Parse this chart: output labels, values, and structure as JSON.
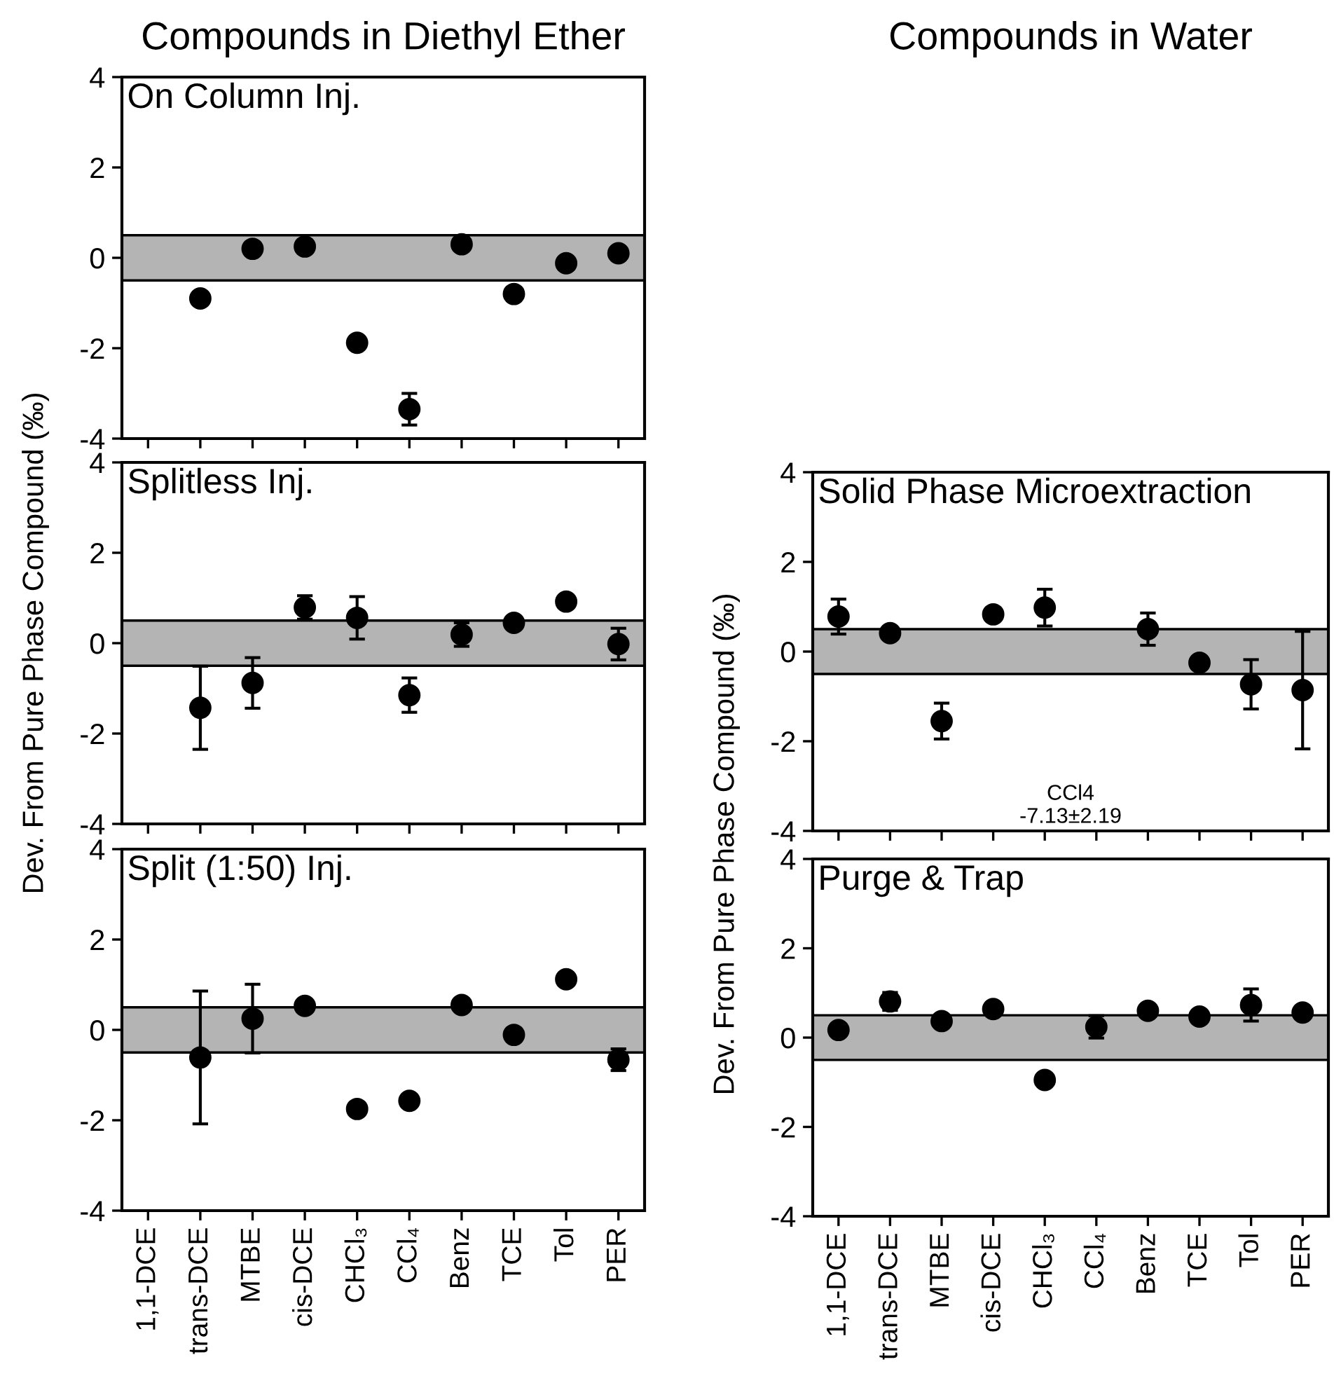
{
  "chart_data": [
    {
      "type": "scatter",
      "title": "Compounds in Diethyl Ether",
      "subtitle": "On Column Inj.",
      "categories": [
        null,
        null,
        null,
        null,
        null,
        null,
        null,
        null,
        null,
        null
      ],
      "series": [
        {
          "color": "#000000",
          "values": [
            null,
            -0.9,
            0.2,
            0.25,
            -1.88,
            -3.35,
            0.3,
            -0.8,
            -0.12,
            0.1
          ],
          "errors": [
            null,
            null,
            null,
            null,
            null,
            0.35,
            null,
            null,
            null,
            null
          ]
        }
      ],
      "ylim": [
        -4,
        4
      ],
      "yticks": [
        -4,
        -2,
        0,
        2,
        4
      ],
      "bands": [
        {
          "axis": "y",
          "from": -0.5,
          "to": 0.5,
          "color": "#b4b4b4"
        }
      ],
      "marker": "circle",
      "tick_labels": "y",
      "grid": false,
      "legend": false
    },
    {
      "type": "scatter",
      "subtitle": "Splitless Inj.",
      "ylabel": "Dev. From Pure Phase Compound (‰)",
      "categories": [
        null,
        null,
        null,
        null,
        null,
        null,
        null,
        null,
        null,
        null
      ],
      "series": [
        {
          "color": "#000000",
          "values": [
            null,
            -1.43,
            -0.88,
            0.79,
            0.56,
            -1.15,
            0.19,
            0.45,
            0.92,
            -0.02
          ],
          "errors": [
            null,
            0.92,
            0.56,
            0.26,
            0.47,
            0.38,
            0.26,
            null,
            null,
            0.35
          ]
        }
      ],
      "ylim": [
        -4,
        4
      ],
      "yticks": [
        -4,
        -2,
        0,
        2,
        4
      ],
      "bands": [
        {
          "axis": "y",
          "from": -0.5,
          "to": 0.5,
          "color": "#b4b4b4"
        }
      ],
      "marker": "circle",
      "tick_labels": "y",
      "grid": false,
      "legend": false
    },
    {
      "type": "scatter",
      "subtitle": "Split (1:50) Inj.",
      "categories": [
        "1,1-DCE",
        "trans-DCE",
        "MTBE",
        "cis-DCE",
        "CHCl₃",
        "CCl₄",
        "Benz",
        "TCE",
        "Tol",
        "PER"
      ],
      "series": [
        {
          "color": "#000000",
          "values": [
            null,
            -0.61,
            0.25,
            0.53,
            -1.75,
            -1.57,
            0.55,
            -0.11,
            1.12,
            -0.66
          ],
          "errors": [
            null,
            1.47,
            0.76,
            null,
            0.1,
            null,
            null,
            null,
            null,
            0.24
          ]
        }
      ],
      "ylim": [
        -4,
        4
      ],
      "yticks": [
        -4,
        -2,
        0,
        2,
        4
      ],
      "bands": [
        {
          "axis": "y",
          "from": -0.5,
          "to": 0.5,
          "color": "#b4b4b4"
        }
      ],
      "marker": "circle",
      "grid": false,
      "legend": false
    },
    {
      "type": "scatter",
      "title": "Compounds in Water",
      "subtitle": "Solid Phase Microextraction",
      "ylabel": "Dev. From Pure Phase Compound (‰)",
      "categories": [
        null,
        null,
        null,
        null,
        null,
        null,
        null,
        null,
        null,
        null
      ],
      "series": [
        {
          "color": "#000000",
          "values": [
            0.78,
            0.41,
            -1.55,
            0.83,
            0.98,
            null,
            0.5,
            -0.25,
            -0.73,
            -0.86
          ],
          "errors": [
            0.39,
            null,
            0.4,
            null,
            0.41,
            null,
            0.36,
            null,
            0.55,
            1.31
          ]
        }
      ],
      "annotations": [
        "CCl4\n-7.13±2.19"
      ],
      "ylim": [
        -4,
        4
      ],
      "yticks": [
        -4,
        -2,
        0,
        2,
        4
      ],
      "bands": [
        {
          "axis": "y",
          "from": -0.5,
          "to": 0.5,
          "color": "#b4b4b4"
        }
      ],
      "marker": "circle",
      "tick_labels": "y",
      "grid": false,
      "legend": false
    },
    {
      "type": "scatter",
      "subtitle": "Purge & Trap",
      "categories": [
        "1,1-DCE",
        "trans-DCE",
        "MTBE",
        "cis-DCE",
        "CHCl₃",
        "CCl₄",
        "Benz",
        "TCE",
        "Tol",
        "PER"
      ],
      "series": [
        {
          "color": "#000000",
          "values": [
            0.17,
            0.81,
            0.37,
            0.64,
            -0.95,
            0.24,
            0.6,
            0.47,
            0.73,
            0.56
          ],
          "errors": [
            null,
            0.2,
            null,
            null,
            null,
            0.25,
            null,
            null,
            0.36,
            null
          ]
        }
      ],
      "ylim": [
        -4,
        4
      ],
      "yticks": [
        -4,
        -2,
        0,
        2,
        4
      ],
      "bands": [
        {
          "axis": "y",
          "from": -0.5,
          "to": 0.5,
          "color": "#b4b4b4"
        }
      ],
      "marker": "circle",
      "grid": false,
      "legend": false
    }
  ]
}
